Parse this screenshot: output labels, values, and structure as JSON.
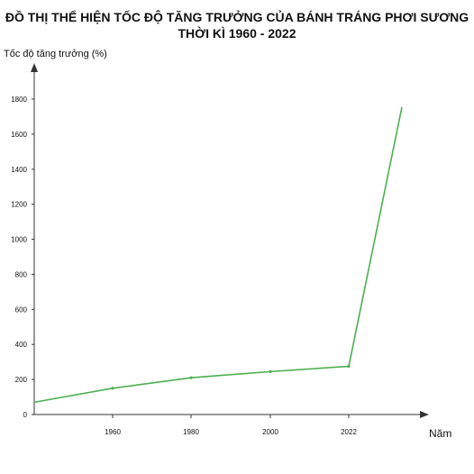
{
  "chart_data": {
    "type": "line",
    "title_lines": [
      "ĐỒ THỊ THỂ HIỆN TỐC ĐỘ TĂNG TRƯỞNG CỦA BÁNH TRÁNG PHƠI SƯƠNG",
      "THỜI KÌ 1960 - 2022"
    ],
    "ylabel": "Tốc độ tăng trưởng (%)",
    "xlabel": "Năm",
    "x_ticks": [
      "1960",
      "1980",
      "2000",
      "2022"
    ],
    "y_ticks": [
      0,
      200,
      400,
      600,
      800,
      1000,
      1200,
      1400,
      1600,
      1800
    ],
    "ylim": [
      0,
      1800
    ],
    "grid": false,
    "line_color": "#4caf50",
    "points": [
      {
        "x": "",
        "y": 70
      },
      {
        "x": "1960",
        "y": 150
      },
      {
        "x": "1980",
        "y": 210
      },
      {
        "x": "2000",
        "y": 245
      },
      {
        "x": "2022",
        "y": 275
      },
      {
        "x": "",
        "y": 1755
      }
    ]
  }
}
